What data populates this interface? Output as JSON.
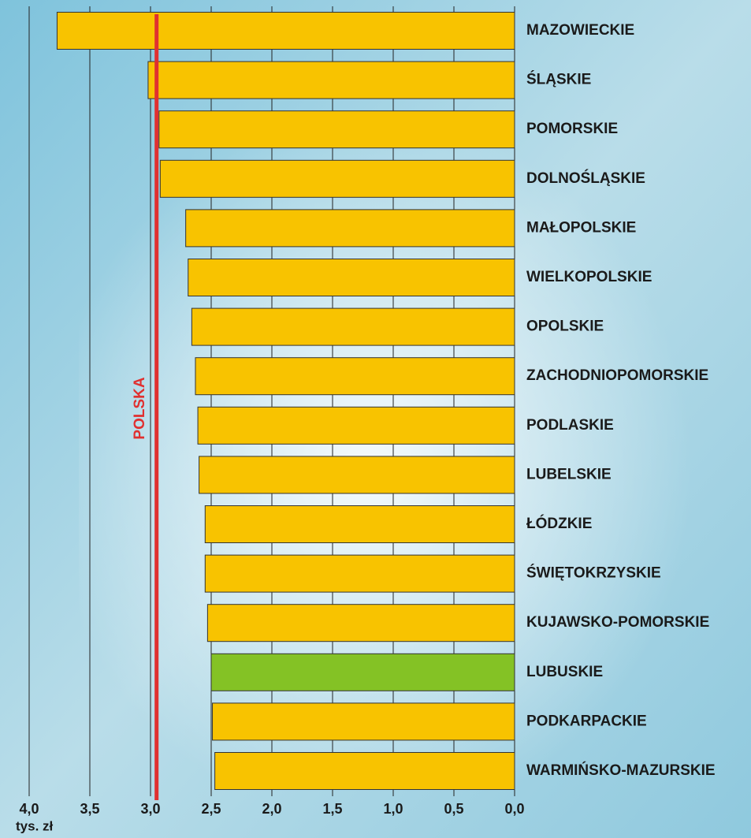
{
  "chart_data": {
    "type": "hbar",
    "categories": [
      "MAZOWIECKIE",
      "ŚLĄSKIE",
      "POMORSKIE",
      "DOLNOŚLĄSKIE",
      "MAŁOPOLSKIE",
      "WIELKOPOLSKIE",
      "OPOLSKIE",
      "ZACHODNIOPOMORSKIE",
      "PODLASKIE",
      "LUBELSKIE",
      "ŁÓDZKIE",
      "ŚWIĘTOKRZYSKIE",
      "KUJAWSKO-POMORSKIE",
      "LUBUSKIE",
      "PODKARPACKIE",
      "WARMIŃSKO-MAZURSKIE"
    ],
    "values": [
      3.77,
      3.02,
      2.93,
      2.92,
      2.71,
      2.69,
      2.66,
      2.63,
      2.61,
      2.6,
      2.55,
      2.55,
      2.53,
      2.5,
      2.49,
      2.47
    ],
    "colors": [
      "#f8c300",
      "#f8c300",
      "#f8c300",
      "#f8c300",
      "#f8c300",
      "#f8c300",
      "#f8c300",
      "#f8c300",
      "#f8c300",
      "#f8c300",
      "#f8c300",
      "#f8c300",
      "#f8c300",
      "#84c225",
      "#f8c300",
      "#f8c300"
    ],
    "xlim": [
      4.0,
      0.0
    ],
    "xticks": [
      {
        "value": 4.0,
        "label": "4,0"
      },
      {
        "value": 3.5,
        "label": "3,5"
      },
      {
        "value": 3.0,
        "label": "3,0"
      },
      {
        "value": 2.5,
        "label": "2,5"
      },
      {
        "value": 2.0,
        "label": "2,0"
      },
      {
        "value": 1.5,
        "label": "1,5"
      },
      {
        "value": 1.0,
        "label": "1,0"
      },
      {
        "value": 0.5,
        "label": "0,5"
      },
      {
        "value": 0.0,
        "label": "0,0"
      }
    ],
    "x_label": "tys. zł",
    "grid": true,
    "reference_line": {
      "value": 2.95,
      "label": "POLSKA",
      "color": "#e03030"
    }
  }
}
